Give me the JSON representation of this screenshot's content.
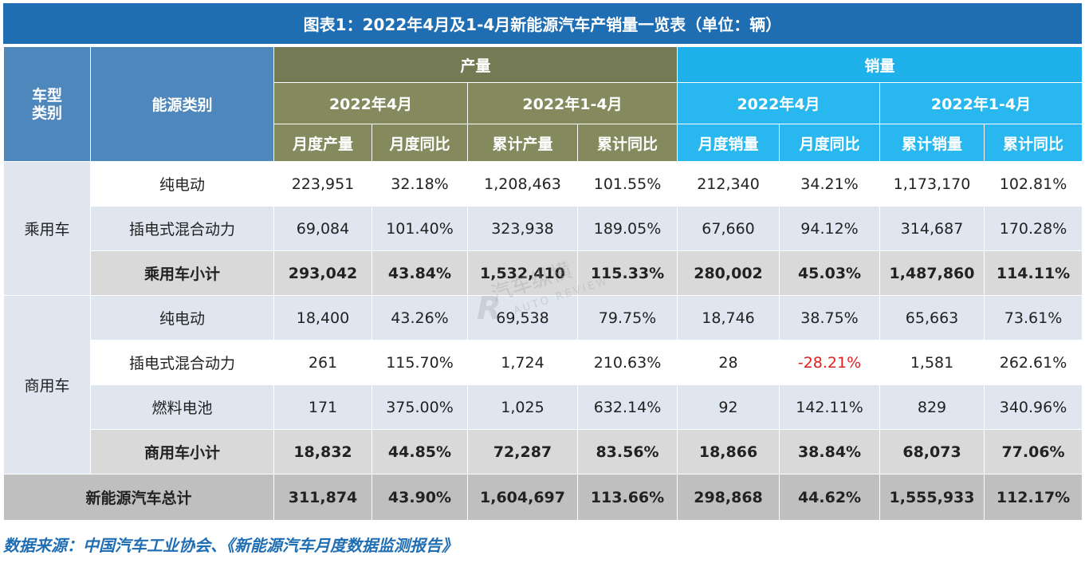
{
  "title": "图表1：2022年4月及1-4月新能源汽车产销量一览表（单位：辆）",
  "header": {
    "vehicle_type": "车型\n类别",
    "energy_type": "能源类别",
    "production": "产量",
    "sales": "销量",
    "period_month": "2022年4月",
    "period_ytd": "2022年1-4月",
    "col_prod_month": "月度产量",
    "col_prod_month_yoy": "月度同比",
    "col_prod_ytd": "累计产量",
    "col_prod_ytd_yoy": "累计同比",
    "col_sales_month": "月度销量",
    "col_sales_month_yoy": "月度同比",
    "col_sales_ytd": "累计销量",
    "col_sales_ytd_yoy": "累计同比"
  },
  "categories": {
    "passenger": "乘用车",
    "commercial": "商用车"
  },
  "rows": [
    {
      "label": "纯电动",
      "v": [
        "223,951",
        "32.18%",
        "1,208,463",
        "101.55%",
        "212,340",
        "34.21%",
        "1,173,170",
        "102.81%"
      ]
    },
    {
      "label": "插电式混合动力",
      "v": [
        "69,084",
        "101.40%",
        "323,938",
        "189.05%",
        "67,660",
        "94.12%",
        "314,687",
        "170.28%"
      ]
    },
    {
      "label": "乘用车小计",
      "v": [
        "293,042",
        "43.84%",
        "1,532,410",
        "115.33%",
        "280,002",
        "45.03%",
        "1,487,860",
        "114.11%"
      ]
    },
    {
      "label": "纯电动",
      "v": [
        "18,400",
        "43.26%",
        "69,538",
        "79.75%",
        "18,746",
        "38.75%",
        "65,663",
        "73.61%"
      ]
    },
    {
      "label": "插电式混合动力",
      "v": [
        "261",
        "115.70%",
        "1,724",
        "210.63%",
        "28",
        "-28.21%",
        "1,581",
        "262.61%"
      ]
    },
    {
      "label": "燃料电池",
      "v": [
        "171",
        "375.00%",
        "1,025",
        "632.14%",
        "92",
        "142.11%",
        "829",
        "340.96%"
      ]
    },
    {
      "label": "商用车小计",
      "v": [
        "18,832",
        "44.85%",
        "72,287",
        "83.56%",
        "18,866",
        "38.84%",
        "68,073",
        "77.06%"
      ]
    },
    {
      "label": "新能源汽车总计",
      "v": [
        "311,874",
        "43.90%",
        "1,604,697",
        "113.66%",
        "298,868",
        "44.62%",
        "1,555,933",
        "112.17%"
      ]
    }
  ],
  "watermark": {
    "cn": "汽车纵横",
    "en": "AUTO REVIEW"
  },
  "source": "数据来源：中国汽车工业协会、《新能源汽车月度数据监测报告》",
  "colors": {
    "title_bg": "#1f6eb3",
    "production": "#848a5e",
    "sales": "#28b8ef",
    "negative": "#e02020"
  }
}
